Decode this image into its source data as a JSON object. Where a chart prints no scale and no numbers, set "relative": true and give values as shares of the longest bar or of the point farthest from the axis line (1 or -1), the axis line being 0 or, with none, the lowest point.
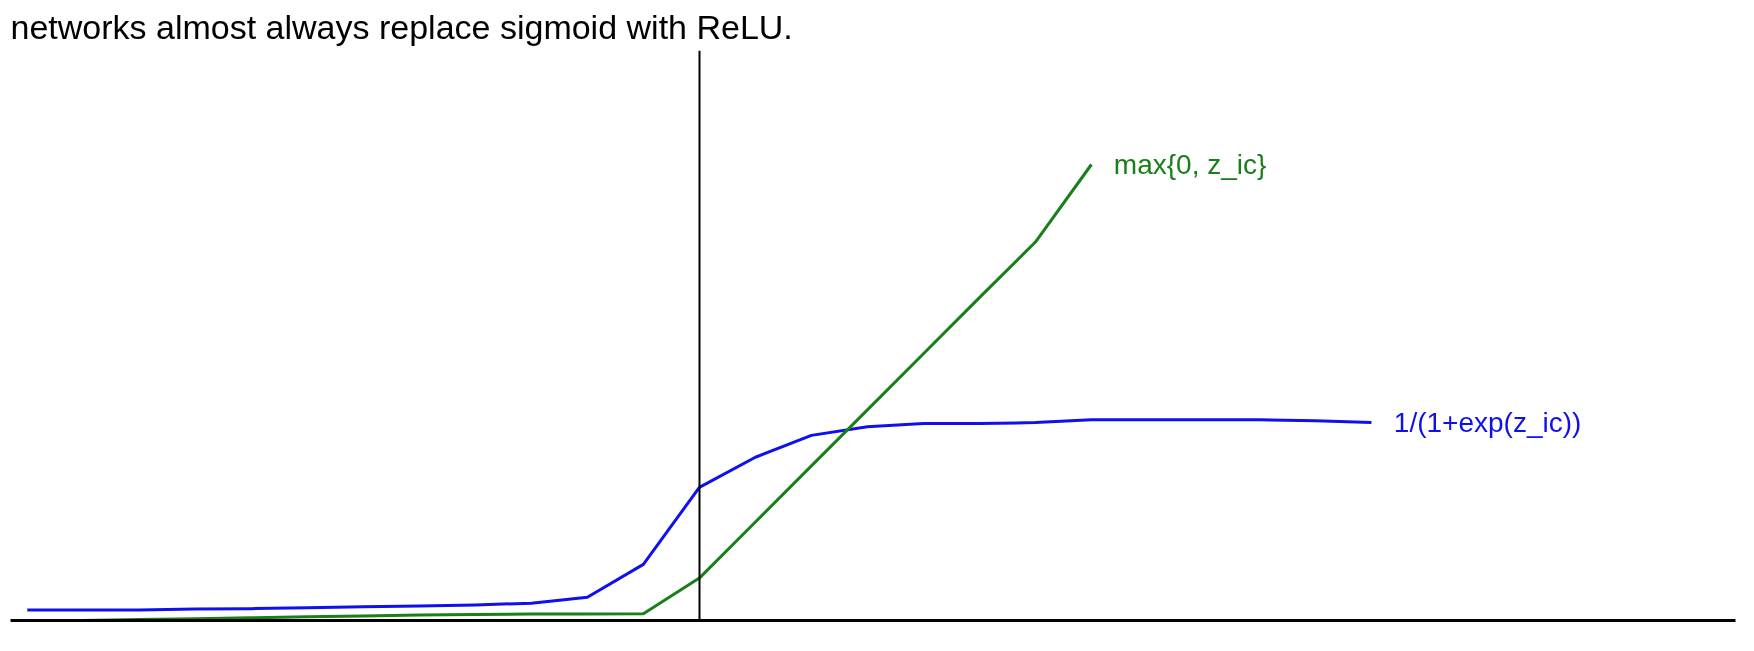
{
  "chart_data": {
    "type": "line",
    "title": "networks almost always replace sigmoid with ReLU.",
    "relative": true,
    "legend": false,
    "categories": [
      null,
      null,
      null,
      null,
      null,
      null,
      null,
      null,
      null,
      null,
      null,
      null,
      null,
      null,
      null,
      null,
      null,
      null,
      null,
      null,
      null,
      null,
      null,
      null,
      null
    ],
    "series": [
      {
        "name": "1/(1+exp(z_ic))",
        "color": "#1010ee",
        "values": [
          0.023,
          0.023,
          0.023,
          0.025,
          0.026,
          0.028,
          0.03,
          0.032,
          0.034,
          0.038,
          0.051,
          0.123,
          0.292,
          0.358,
          0.406,
          0.425,
          0.432,
          0.432,
          0.434,
          0.44,
          0.44,
          0.44,
          0.44,
          0.438,
          0.434
        ]
      },
      {
        "name": "max{0, z_ic}",
        "color": "#1a7f1a",
        "values": [
          0.0,
          0.0,
          0.002,
          0.004,
          0.006,
          0.008,
          0.01,
          0.012,
          0.013,
          0.014,
          0.014,
          0.015,
          0.093,
          0.216,
          0.339,
          0.462,
          0.585,
          0.708,
          0.83,
          1.0,
          null,
          null,
          null,
          null,
          null
        ]
      }
    ]
  }
}
